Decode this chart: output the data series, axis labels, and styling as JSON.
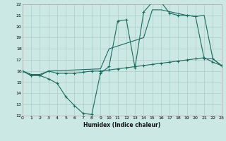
{
  "xlabel": "Humidex (Indice chaleur)",
  "bg_color": "#cce8e5",
  "grid_color": "#aacfcc",
  "line_color": "#1a6b5e",
  "xlim": [
    0,
    23
  ],
  "ylim": [
    12,
    22
  ],
  "xticks": [
    0,
    1,
    2,
    3,
    4,
    5,
    6,
    7,
    8,
    9,
    10,
    11,
    12,
    13,
    14,
    15,
    16,
    17,
    18,
    19,
    20,
    21,
    22,
    23
  ],
  "yticks": [
    12,
    13,
    14,
    15,
    16,
    17,
    18,
    19,
    20,
    21,
    22
  ],
  "line1_x": [
    0,
    1,
    2,
    3,
    4,
    5,
    6,
    7,
    8,
    9,
    10,
    11,
    12,
    13,
    14,
    15,
    16,
    17,
    18,
    19,
    20,
    21,
    22,
    23
  ],
  "line1_y": [
    16.0,
    15.6,
    15.6,
    15.3,
    14.9,
    13.7,
    12.9,
    12.2,
    12.1,
    15.8,
    16.4,
    20.5,
    20.6,
    16.3,
    21.3,
    22.2,
    22.2,
    21.2,
    21.0,
    21.0,
    20.9,
    17.1,
    17.1,
    16.5
  ],
  "line2_x": [
    0,
    1,
    2,
    3,
    4,
    5,
    6,
    7,
    8,
    9,
    10,
    11,
    12,
    13,
    14,
    15,
    16,
    17,
    18,
    19,
    20,
    21,
    22,
    23
  ],
  "line2_y": [
    16.0,
    15.6,
    15.6,
    16.0,
    15.8,
    15.8,
    15.8,
    15.9,
    16.0,
    16.0,
    16.1,
    16.2,
    16.3,
    16.4,
    16.5,
    16.6,
    16.7,
    16.8,
    16.9,
    17.0,
    17.1,
    17.2,
    16.8,
    16.5
  ],
  "line3_x": [
    0,
    1,
    2,
    3,
    9,
    10,
    14,
    15,
    16,
    19,
    20,
    21,
    22,
    23
  ],
  "line3_y": [
    16.0,
    15.7,
    15.7,
    16.0,
    16.2,
    18.0,
    19.0,
    21.5,
    21.5,
    21.0,
    20.9,
    21.0,
    17.1,
    16.5
  ]
}
